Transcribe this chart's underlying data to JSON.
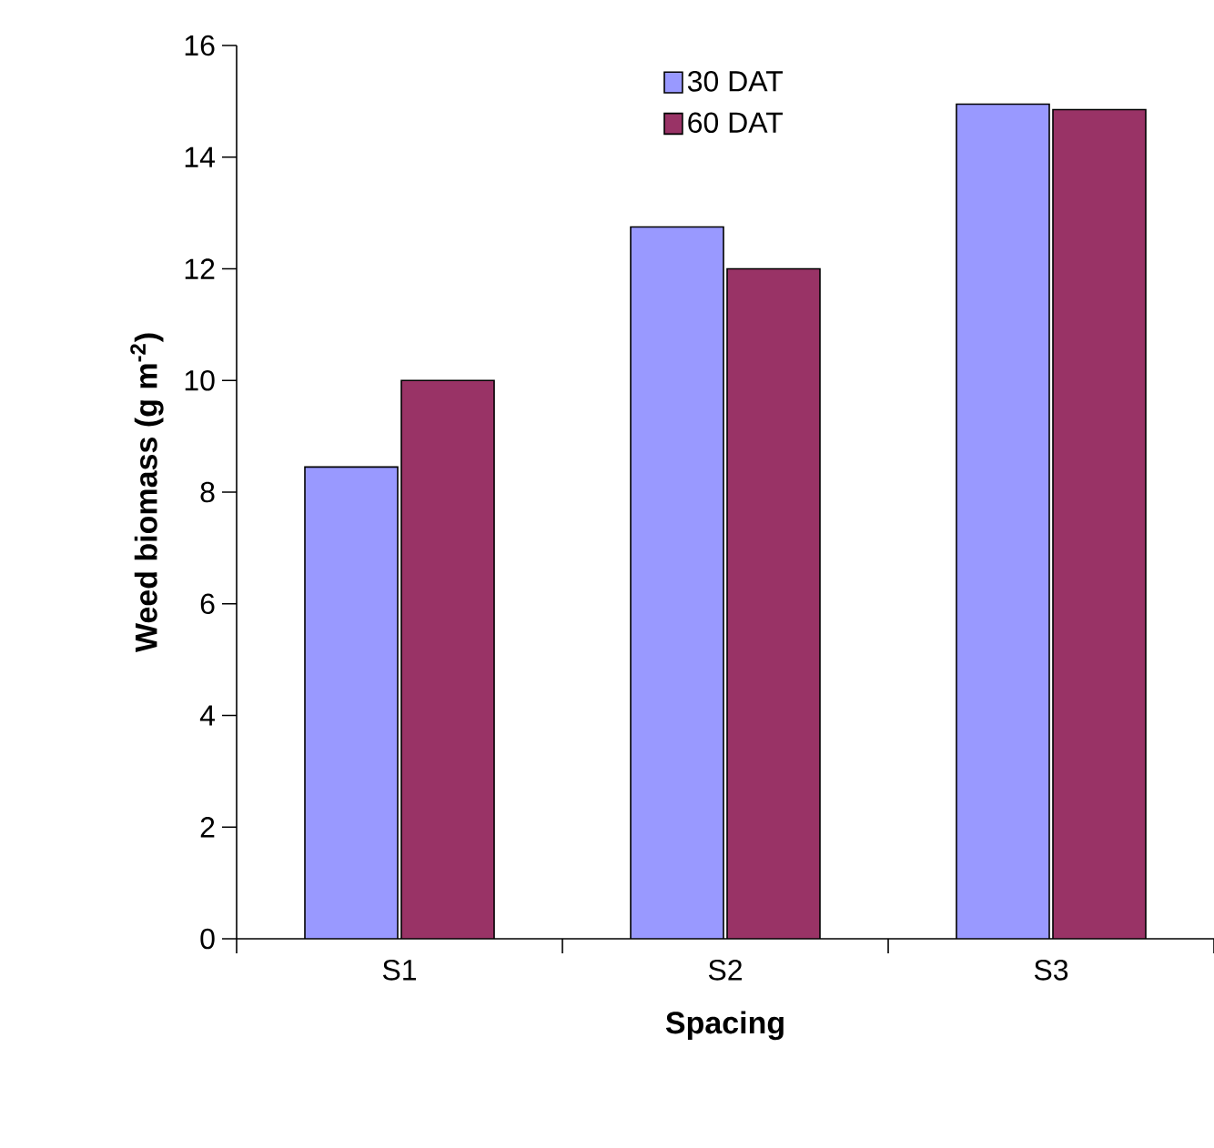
{
  "chart_data": {
    "type": "bar",
    "xlabel": "Spacing",
    "ylabel": "**Weed biomass (g m$^{-2}$)**",
    "categories": [
      "S1",
      "S2",
      "S3"
    ],
    "series": [
      {
        "name": "30 DAT",
        "color": "#9999ff",
        "values": [
          8.45,
          12.75,
          14.95
        ]
      },
      {
        "name": "60 DAT",
        "color": "#993366",
        "values": [
          10.0,
          12.0,
          14.85
        ]
      }
    ],
    "ylim": [
      0,
      16
    ],
    "yticks": [
      0,
      2,
      4,
      6,
      8,
      10,
      12,
      14,
      16
    ],
    "legend": "top",
    "grid": false
  }
}
